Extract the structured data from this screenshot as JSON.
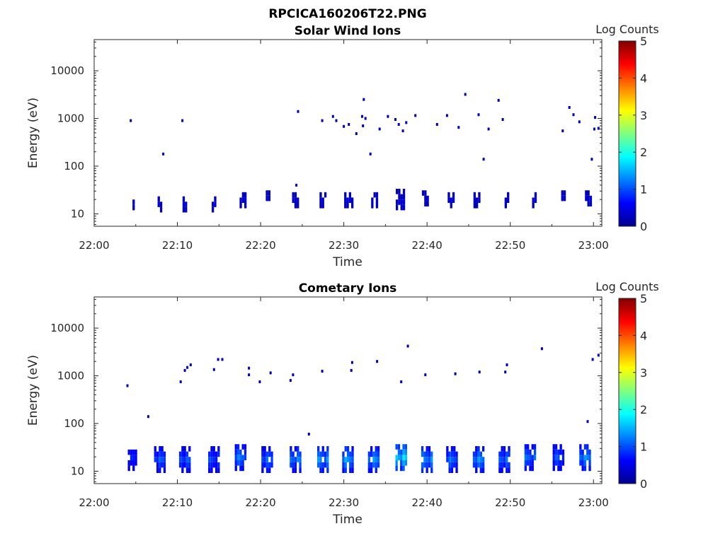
{
  "figure": {
    "title": "RPCICA160206T22.PNG"
  },
  "colormap": {
    "name": "jet",
    "stops": [
      "#00008f",
      "#0000ff",
      "#0080ff",
      "#00ffff",
      "#80ff80",
      "#ffff00",
      "#ff8000",
      "#ff0000",
      "#800000"
    ]
  },
  "chart_data": [
    {
      "type": "heatmap",
      "title": "Solar Wind Ions",
      "xlabel": "Time",
      "ylabel": "Energy (eV)",
      "x_ticks": [
        "22:00",
        "22:10",
        "22:20",
        "22:30",
        "22:40",
        "22:50",
        "23:00"
      ],
      "x_range_minutes": [
        0,
        61
      ],
      "y_ticks": [
        "10",
        "100",
        "1000",
        "10000"
      ],
      "y_scale": "log",
      "y_range": [
        5.5,
        45000
      ],
      "colorbar": {
        "label": "Log Counts",
        "ticks": [
          "0",
          "1",
          "2",
          "3",
          "4",
          "5"
        ],
        "range": [
          0,
          5
        ]
      },
      "blobs": [
        {
          "t": 4.6,
          "e": 20,
          "v": 0.4,
          "w": 0.6,
          "rows": 3
        },
        {
          "t": 7.9,
          "e": 18,
          "v": 0.4,
          "w": 0.5,
          "rows": 3
        },
        {
          "t": 10.9,
          "e": 18,
          "v": 0.4,
          "w": 0.5,
          "rows": 3
        },
        {
          "t": 14.4,
          "e": 18,
          "v": 0.4,
          "w": 0.5,
          "rows": 3
        },
        {
          "t": 17.9,
          "e": 22,
          "v": 0.4,
          "w": 0.8,
          "rows": 3
        },
        {
          "t": 20.9,
          "e": 24,
          "v": 0.4,
          "w": 0.6,
          "rows": 2
        },
        {
          "t": 24.2,
          "e": 22,
          "v": 0.4,
          "w": 0.8,
          "rows": 3
        },
        {
          "t": 27.5,
          "e": 22,
          "v": 0.4,
          "w": 0.8,
          "rows": 3
        },
        {
          "t": 30.6,
          "e": 22,
          "v": 0.4,
          "w": 1.0,
          "rows": 3
        },
        {
          "t": 33.7,
          "e": 22,
          "v": 0.4,
          "w": 0.8,
          "rows": 3
        },
        {
          "t": 36.8,
          "e": 20,
          "v": 0.4,
          "w": 1.0,
          "rows": 4
        },
        {
          "t": 39.8,
          "e": 24,
          "v": 0.4,
          "w": 0.8,
          "rows": 3
        },
        {
          "t": 42.9,
          "e": 22,
          "v": 0.4,
          "w": 0.8,
          "rows": 3
        },
        {
          "t": 46.0,
          "e": 22,
          "v": 0.4,
          "w": 0.8,
          "rows": 3
        },
        {
          "t": 49.6,
          "e": 22,
          "v": 0.4,
          "w": 0.6,
          "rows": 3
        },
        {
          "t": 52.9,
          "e": 22,
          "v": 0.4,
          "w": 0.6,
          "rows": 3
        },
        {
          "t": 56.4,
          "e": 24,
          "v": 0.4,
          "w": 0.5,
          "rows": 2
        },
        {
          "t": 59.4,
          "e": 24,
          "v": 0.4,
          "w": 0.8,
          "rows": 3
        }
      ],
      "points": [
        {
          "t": 4.4,
          "e": 900,
          "v": 0.2
        },
        {
          "t": 8.3,
          "e": 180,
          "v": 0.2
        },
        {
          "t": 10.6,
          "e": 900,
          "v": 0.2
        },
        {
          "t": 24.5,
          "e": 1400,
          "v": 0.2
        },
        {
          "t": 24.3,
          "e": 40,
          "v": 0.2
        },
        {
          "t": 27.4,
          "e": 900,
          "v": 0.2
        },
        {
          "t": 28.7,
          "e": 1100,
          "v": 0.2
        },
        {
          "t": 29.1,
          "e": 900,
          "v": 0.2
        },
        {
          "t": 30.0,
          "e": 680,
          "v": 0.3
        },
        {
          "t": 30.6,
          "e": 750,
          "v": 0.2
        },
        {
          "t": 31.5,
          "e": 480,
          "v": 0.2
        },
        {
          "t": 32.2,
          "e": 1100,
          "v": 0.2
        },
        {
          "t": 32.4,
          "e": 2500,
          "v": 0.2
        },
        {
          "t": 32.6,
          "e": 1000,
          "v": 0.2
        },
        {
          "t": 32.3,
          "e": 700,
          "v": 0.2
        },
        {
          "t": 33.2,
          "e": 180,
          "v": 0.2
        },
        {
          "t": 34.3,
          "e": 600,
          "v": 0.2
        },
        {
          "t": 35.3,
          "e": 1100,
          "v": 0.2
        },
        {
          "t": 36.2,
          "e": 950,
          "v": 0.2
        },
        {
          "t": 36.6,
          "e": 750,
          "v": 0.3
        },
        {
          "t": 37.1,
          "e": 550,
          "v": 0.2
        },
        {
          "t": 37.5,
          "e": 820,
          "v": 0.2
        },
        {
          "t": 38.6,
          "e": 1150,
          "v": 0.2
        },
        {
          "t": 41.2,
          "e": 750,
          "v": 0.2
        },
        {
          "t": 42.4,
          "e": 1150,
          "v": 0.2
        },
        {
          "t": 43.8,
          "e": 650,
          "v": 0.2
        },
        {
          "t": 44.6,
          "e": 3200,
          "v": 0.2
        },
        {
          "t": 46.2,
          "e": 1200,
          "v": 0.2
        },
        {
          "t": 46.8,
          "e": 140,
          "v": 0.2
        },
        {
          "t": 47.4,
          "e": 600,
          "v": 0.2
        },
        {
          "t": 48.6,
          "e": 2400,
          "v": 0.2
        },
        {
          "t": 49.1,
          "e": 950,
          "v": 0.2
        },
        {
          "t": 56.3,
          "e": 550,
          "v": 0.2
        },
        {
          "t": 57.1,
          "e": 1700,
          "v": 0.2
        },
        {
          "t": 57.6,
          "e": 1200,
          "v": 0.2
        },
        {
          "t": 58.3,
          "e": 850,
          "v": 0.2
        },
        {
          "t": 59.8,
          "e": 140,
          "v": 0.2
        },
        {
          "t": 60.1,
          "e": 600,
          "v": 0.3
        },
        {
          "t": 60.2,
          "e": 1050,
          "v": 0.2
        },
        {
          "t": 60.6,
          "e": 620,
          "v": 0.2
        }
      ]
    },
    {
      "type": "heatmap",
      "title": "Cometary Ions",
      "xlabel": "Time",
      "ylabel": "Energy (eV)",
      "x_ticks": [
        "22:00",
        "22:10",
        "22:20",
        "22:30",
        "22:40",
        "22:50",
        "23:00"
      ],
      "x_range_minutes": [
        0,
        61
      ],
      "y_ticks": [
        "10",
        "100",
        "1000",
        "10000"
      ],
      "y_scale": "log",
      "y_range": [
        5.5,
        45000
      ],
      "colorbar": {
        "label": "Log Counts",
        "ticks": [
          "0",
          "1",
          "2",
          "3",
          "4",
          "5"
        ],
        "range": [
          0,
          5
        ]
      },
      "blobs": [
        {
          "t": 4.6,
          "e": 22,
          "v": 0.8,
          "w": 1.2,
          "rows": 5
        },
        {
          "t": 7.9,
          "e": 20,
          "v": 1.1,
          "w": 1.3,
          "rows": 5
        },
        {
          "t": 10.9,
          "e": 20,
          "v": 1.1,
          "w": 1.3,
          "rows": 5
        },
        {
          "t": 14.4,
          "e": 20,
          "v": 1.0,
          "w": 1.3,
          "rows": 5
        },
        {
          "t": 17.6,
          "e": 22,
          "v": 1.3,
          "w": 1.4,
          "rows": 5
        },
        {
          "t": 20.8,
          "e": 20,
          "v": 1.2,
          "w": 1.3,
          "rows": 5
        },
        {
          "t": 24.2,
          "e": 20,
          "v": 1.3,
          "w": 1.4,
          "rows": 5
        },
        {
          "t": 27.5,
          "e": 20,
          "v": 1.4,
          "w": 1.4,
          "rows": 5
        },
        {
          "t": 30.5,
          "e": 20,
          "v": 1.5,
          "w": 1.4,
          "rows": 5
        },
        {
          "t": 33.6,
          "e": 20,
          "v": 1.4,
          "w": 1.3,
          "rows": 5
        },
        {
          "t": 36.9,
          "e": 22,
          "v": 1.8,
          "w": 1.4,
          "rows": 5
        },
        {
          "t": 40.0,
          "e": 20,
          "v": 1.4,
          "w": 1.4,
          "rows": 5
        },
        {
          "t": 43.0,
          "e": 20,
          "v": 1.2,
          "w": 1.4,
          "rows": 5
        },
        {
          "t": 46.2,
          "e": 20,
          "v": 1.4,
          "w": 1.4,
          "rows": 5
        },
        {
          "t": 49.3,
          "e": 20,
          "v": 1.2,
          "w": 1.4,
          "rows": 5
        },
        {
          "t": 52.4,
          "e": 22,
          "v": 1.2,
          "w": 1.4,
          "rows": 5
        },
        {
          "t": 55.8,
          "e": 22,
          "v": 1.1,
          "w": 1.3,
          "rows": 5
        },
        {
          "t": 59.0,
          "e": 22,
          "v": 1.4,
          "w": 1.3,
          "rows": 5
        }
      ],
      "points": [
        {
          "t": 4.0,
          "e": 620,
          "v": 0.2
        },
        {
          "t": 6.5,
          "e": 140,
          "v": 0.2
        },
        {
          "t": 10.4,
          "e": 750,
          "v": 0.2
        },
        {
          "t": 10.9,
          "e": 1300,
          "v": 0.2
        },
        {
          "t": 11.2,
          "e": 1500,
          "v": 0.2
        },
        {
          "t": 11.6,
          "e": 1700,
          "v": 0.2
        },
        {
          "t": 14.4,
          "e": 1350,
          "v": 0.2
        },
        {
          "t": 14.9,
          "e": 2200,
          "v": 0.2
        },
        {
          "t": 15.4,
          "e": 2200,
          "v": 0.2
        },
        {
          "t": 18.6,
          "e": 1450,
          "v": 0.2
        },
        {
          "t": 18.6,
          "e": 1050,
          "v": 0.2
        },
        {
          "t": 19.9,
          "e": 750,
          "v": 0.2
        },
        {
          "t": 21.2,
          "e": 1150,
          "v": 0.2
        },
        {
          "t": 23.6,
          "e": 800,
          "v": 0.2
        },
        {
          "t": 23.9,
          "e": 1050,
          "v": 0.2
        },
        {
          "t": 25.8,
          "e": 60,
          "v": 0.2
        },
        {
          "t": 27.4,
          "e": 1250,
          "v": 0.3
        },
        {
          "t": 30.9,
          "e": 1300,
          "v": 0.2
        },
        {
          "t": 31.0,
          "e": 1900,
          "v": 0.2
        },
        {
          "t": 34.0,
          "e": 2000,
          "v": 0.2
        },
        {
          "t": 36.9,
          "e": 750,
          "v": 0.2
        },
        {
          "t": 37.7,
          "e": 4200,
          "v": 0.2
        },
        {
          "t": 39.8,
          "e": 1050,
          "v": 0.2
        },
        {
          "t": 43.4,
          "e": 1100,
          "v": 0.2
        },
        {
          "t": 46.3,
          "e": 1200,
          "v": 0.2
        },
        {
          "t": 49.4,
          "e": 1200,
          "v": 0.2
        },
        {
          "t": 49.6,
          "e": 1700,
          "v": 0.2
        },
        {
          "t": 53.8,
          "e": 3700,
          "v": 0.3
        },
        {
          "t": 59.3,
          "e": 110,
          "v": 0.2
        },
        {
          "t": 59.9,
          "e": 2200,
          "v": 0.2
        },
        {
          "t": 60.6,
          "e": 2700,
          "v": 0.2
        }
      ]
    }
  ]
}
